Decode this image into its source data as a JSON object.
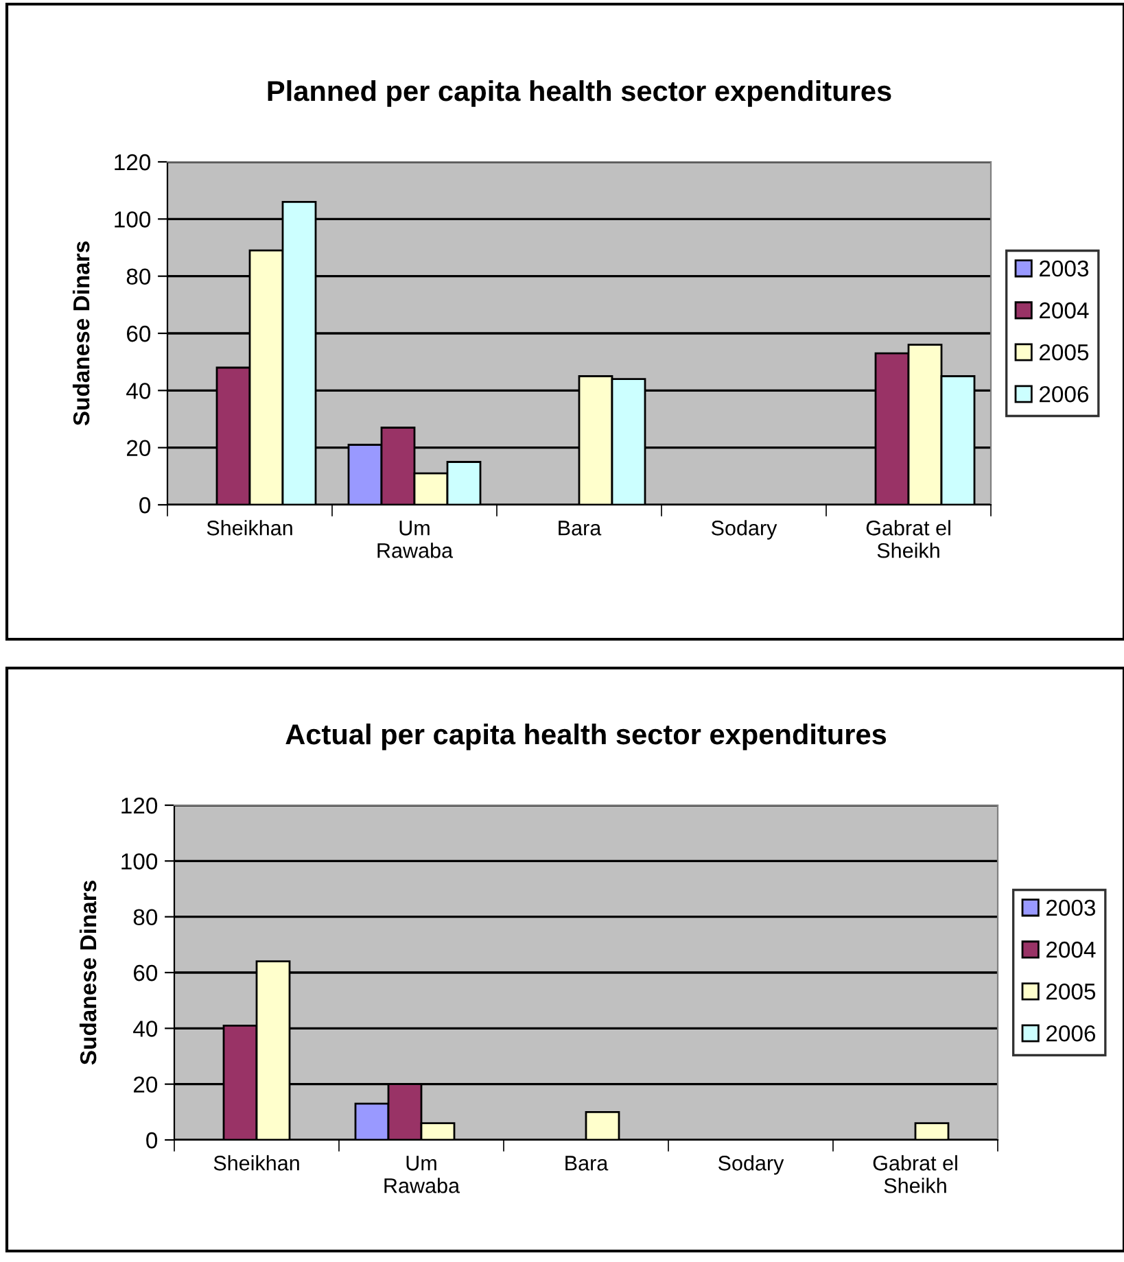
{
  "chart_data": [
    {
      "type": "bar",
      "title": "Planned per capita health sector expenditures",
      "ylabel": "Sudanese Dinars",
      "categories": [
        "Sheikhan",
        "Um\nRawaba",
        "Bara",
        "Sodary",
        "Gabrat el\nSheikh"
      ],
      "ylim": [
        0,
        120
      ],
      "yticks": [
        0,
        20,
        40,
        60,
        80,
        100,
        120
      ],
      "grid": "y",
      "legend": "right",
      "series": [
        {
          "name": "2003",
          "color": "#9999ff",
          "values": [
            null,
            21,
            null,
            null,
            null
          ]
        },
        {
          "name": "2004",
          "color": "#993366",
          "values": [
            48,
            27,
            null,
            null,
            53
          ]
        },
        {
          "name": "2005",
          "color": "#ffffcc",
          "values": [
            89,
            11,
            45,
            null,
            56
          ]
        },
        {
          "name": "2006",
          "color": "#ccffff",
          "values": [
            106,
            15,
            44,
            null,
            45
          ]
        }
      ]
    },
    {
      "type": "bar",
      "title": "Actual per capita health sector expenditures",
      "ylabel": "Sudanese Dinars",
      "categories": [
        "Sheikhan",
        "Um\nRawaba",
        "Bara",
        "Sodary",
        "Gabrat el\nSheikh"
      ],
      "ylim": [
        0,
        120
      ],
      "yticks": [
        0,
        20,
        40,
        60,
        80,
        100,
        120
      ],
      "grid": "y",
      "legend": "right",
      "series": [
        {
          "name": "2003",
          "color": "#9999ff",
          "values": [
            null,
            13,
            null,
            null,
            null
          ]
        },
        {
          "name": "2004",
          "color": "#993366",
          "values": [
            41,
            20,
            null,
            null,
            null
          ]
        },
        {
          "name": "2005",
          "color": "#ffffcc",
          "values": [
            64,
            6,
            10,
            null,
            6
          ]
        },
        {
          "name": "2006",
          "color": "#ccffff",
          "values": [
            null,
            null,
            null,
            null,
            null
          ]
        }
      ]
    }
  ]
}
